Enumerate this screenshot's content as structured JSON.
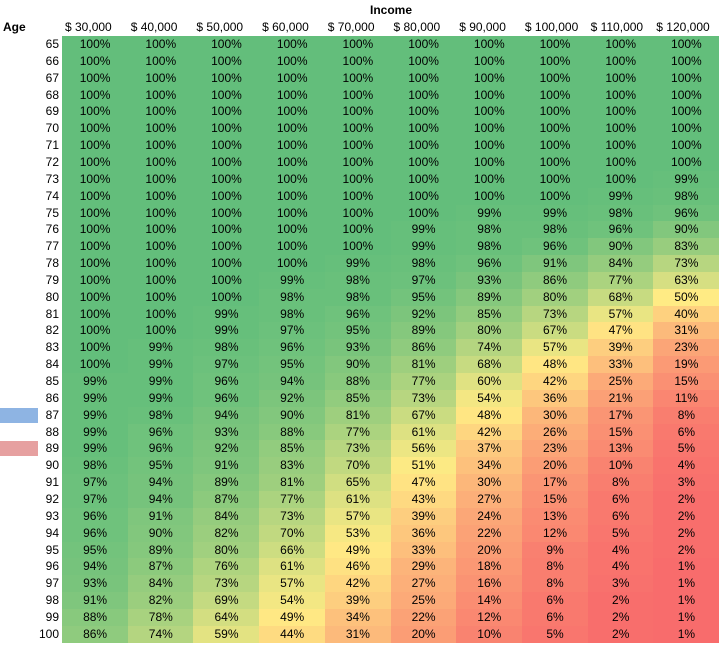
{
  "chart_data": {
    "type": "heatmap",
    "xlabel": "Income",
    "ylabel": "Age",
    "columns": [
      "$ 30,000",
      "$ 40,000",
      "$ 50,000",
      "$ 60,000",
      "$ 70,000",
      "$ 80,000",
      "$ 90,000",
      "$ 100,000",
      "$ 110,000",
      "$ 120,000"
    ],
    "rows": [
      "65",
      "66",
      "67",
      "68",
      "69",
      "70",
      "71",
      "72",
      "73",
      "74",
      "75",
      "76",
      "77",
      "78",
      "79",
      "80",
      "81",
      "82",
      "83",
      "84",
      "85",
      "86",
      "87",
      "88",
      "89",
      "90",
      "91",
      "92",
      "93",
      "94",
      "95",
      "96",
      "97",
      "98",
      "99",
      "100"
    ],
    "highlighted_rows": [
      {
        "row": "87",
        "color": "#8eb4e3"
      },
      {
        "row": "89",
        "color": "#e6a0a0"
      }
    ],
    "color_scale": {
      "low": "#f8696b",
      "mid": "#ffeb84",
      "high": "#63be7b"
    },
    "values": [
      [
        100,
        100,
        100,
        100,
        100,
        100,
        100,
        100,
        100,
        100
      ],
      [
        100,
        100,
        100,
        100,
        100,
        100,
        100,
        100,
        100,
        100
      ],
      [
        100,
        100,
        100,
        100,
        100,
        100,
        100,
        100,
        100,
        100
      ],
      [
        100,
        100,
        100,
        100,
        100,
        100,
        100,
        100,
        100,
        100
      ],
      [
        100,
        100,
        100,
        100,
        100,
        100,
        100,
        100,
        100,
        100
      ],
      [
        100,
        100,
        100,
        100,
        100,
        100,
        100,
        100,
        100,
        100
      ],
      [
        100,
        100,
        100,
        100,
        100,
        100,
        100,
        100,
        100,
        100
      ],
      [
        100,
        100,
        100,
        100,
        100,
        100,
        100,
        100,
        100,
        100
      ],
      [
        100,
        100,
        100,
        100,
        100,
        100,
        100,
        100,
        100,
        99
      ],
      [
        100,
        100,
        100,
        100,
        100,
        100,
        100,
        100,
        99,
        98
      ],
      [
        100,
        100,
        100,
        100,
        100,
        100,
        99,
        99,
        98,
        96
      ],
      [
        100,
        100,
        100,
        100,
        100,
        99,
        98,
        98,
        96,
        90
      ],
      [
        100,
        100,
        100,
        100,
        100,
        99,
        98,
        96,
        90,
        83
      ],
      [
        100,
        100,
        100,
        100,
        99,
        98,
        96,
        91,
        84,
        73
      ],
      [
        100,
        100,
        100,
        99,
        98,
        97,
        93,
        86,
        77,
        63
      ],
      [
        100,
        100,
        100,
        98,
        98,
        95,
        89,
        80,
        68,
        50
      ],
      [
        100,
        100,
        99,
        98,
        96,
        92,
        85,
        73,
        57,
        40
      ],
      [
        100,
        100,
        99,
        97,
        95,
        89,
        80,
        67,
        47,
        31
      ],
      [
        100,
        99,
        98,
        96,
        93,
        86,
        74,
        57,
        39,
        23
      ],
      [
        100,
        99,
        97,
        95,
        90,
        81,
        68,
        48,
        33,
        19
      ],
      [
        99,
        99,
        96,
        94,
        88,
        77,
        60,
        42,
        25,
        15
      ],
      [
        99,
        99,
        96,
        92,
        85,
        73,
        54,
        36,
        21,
        11
      ],
      [
        99,
        98,
        94,
        90,
        81,
        67,
        48,
        30,
        17,
        8
      ],
      [
        99,
        96,
        93,
        88,
        77,
        61,
        42,
        26,
        15,
        6
      ],
      [
        99,
        96,
        92,
        85,
        73,
        56,
        37,
        23,
        13,
        5
      ],
      [
        98,
        95,
        91,
        83,
        70,
        51,
        34,
        20,
        10,
        4
      ],
      [
        97,
        94,
        89,
        81,
        65,
        47,
        30,
        17,
        8,
        3
      ],
      [
        97,
        94,
        87,
        77,
        61,
        43,
        27,
        15,
        6,
        2
      ],
      [
        96,
        91,
        84,
        73,
        57,
        39,
        24,
        13,
        6,
        2
      ],
      [
        96,
        90,
        82,
        70,
        53,
        36,
        22,
        12,
        5,
        2
      ],
      [
        95,
        89,
        80,
        66,
        49,
        33,
        20,
        9,
        4,
        2
      ],
      [
        94,
        87,
        76,
        61,
        46,
        29,
        18,
        8,
        4,
        1
      ],
      [
        93,
        84,
        73,
        57,
        42,
        27,
        16,
        8,
        3,
        1
      ],
      [
        91,
        82,
        69,
        54,
        39,
        25,
        14,
        6,
        2,
        1
      ],
      [
        88,
        78,
        64,
        49,
        34,
        22,
        12,
        6,
        2,
        1
      ],
      [
        86,
        74,
        59,
        44,
        31,
        20,
        10,
        5,
        2,
        1
      ]
    ],
    "value_suffix": "%"
  }
}
